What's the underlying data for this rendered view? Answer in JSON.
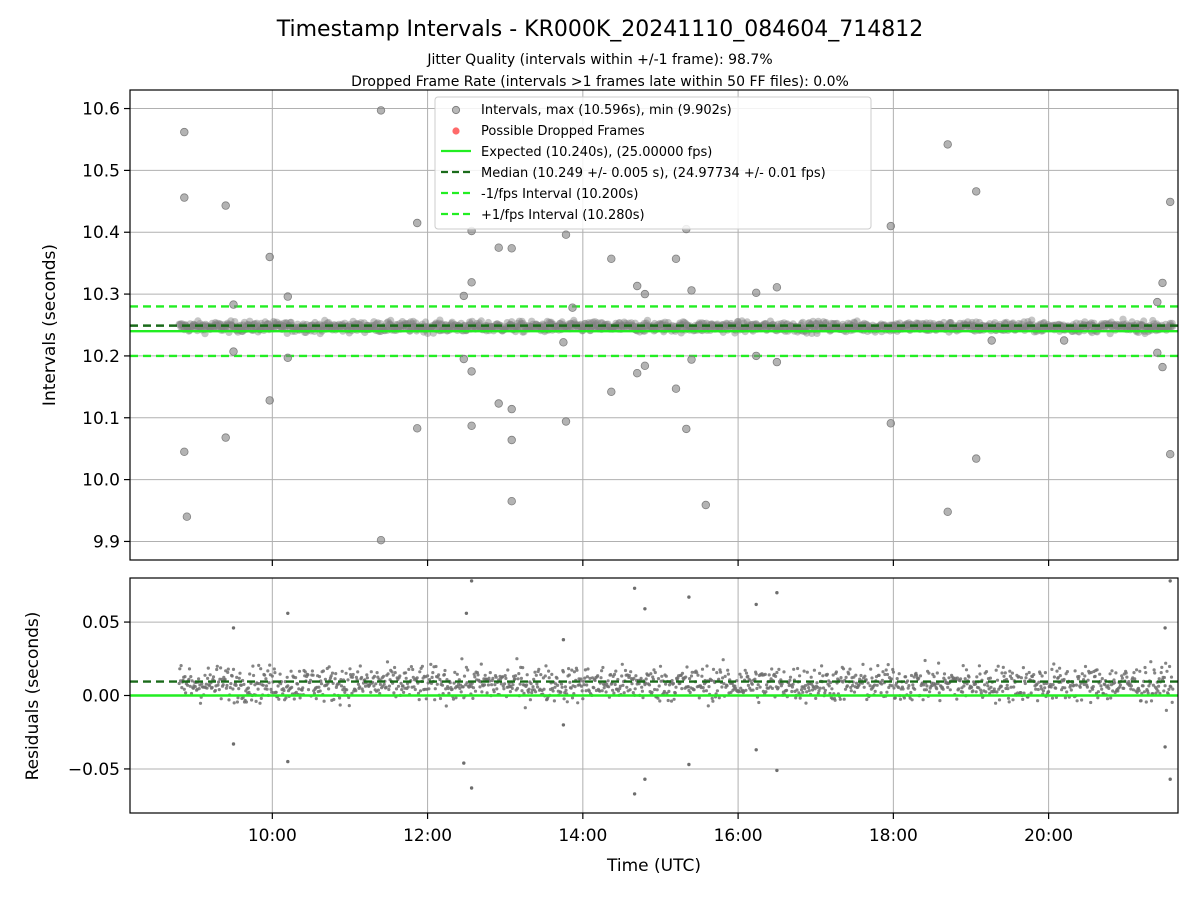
{
  "title": "Timestamp Intervals - KR000K_20241110_084604_714812",
  "subtitle_1": "Jitter Quality (intervals within +/-1 frame): 98.7%",
  "subtitle_2": "Dropped Frame Rate (intervals >1 frames late within 50 FF files): 0.0%",
  "colors": {
    "points": "#808080",
    "dropped": "#ff5a5a",
    "expected": "#22ee22",
    "median": "#1a6b1a",
    "fps_interval": "#22ee22",
    "grid": "#b0b0b0"
  },
  "chart_data": [
    {
      "type": "scatter",
      "name": "intervals",
      "ylabel": "Intervals (seconds)",
      "ylim": [
        9.87,
        10.63
      ],
      "y_ticks": [
        "9.9",
        "10.0",
        "10.1",
        "10.2",
        "10.3",
        "10.4",
        "10.5",
        "10.6"
      ],
      "grid": true,
      "legend_placement": "top-center",
      "legend": [
        "Intervals, max (10.596s), min (9.902s)",
        "Possible Dropped Frames",
        "Expected (10.240s), (25.00000 fps)",
        "Median (10.249 +/- 0.005 s), (24.97734 +/- 0.01 fps)",
        "-1/fps Interval (10.200s)",
        "+1/fps Interval (10.280s)"
      ],
      "reference_lines": {
        "expected": 10.24,
        "median": 10.249,
        "minus_one_fps": 10.2,
        "plus_one_fps": 10.28
      },
      "dense_band": {
        "x_start": "08:48",
        "x_end": "21:36",
        "center": 10.247,
        "spread": 0.007
      },
      "outliers": [
        [
          "08:52",
          10.562
        ],
        [
          "08:52",
          10.456
        ],
        [
          "08:52",
          10.045
        ],
        [
          "08:54",
          9.94
        ],
        [
          "09:24",
          10.443
        ],
        [
          "09:24",
          10.068
        ],
        [
          "09:30",
          10.283
        ],
        [
          "09:30",
          10.207
        ],
        [
          "09:58",
          10.36
        ],
        [
          "09:58",
          10.128
        ],
        [
          "10:12",
          10.296
        ],
        [
          "10:12",
          10.197
        ],
        [
          "11:24",
          10.597
        ],
        [
          "11:24",
          9.902
        ],
        [
          "11:52",
          10.415
        ],
        [
          "11:52",
          10.083
        ],
        [
          "12:28",
          10.297
        ],
        [
          "12:28",
          10.195
        ],
        [
          "12:34",
          10.319
        ],
        [
          "12:34",
          10.175
        ],
        [
          "12:34",
          10.402
        ],
        [
          "12:34",
          10.087
        ],
        [
          "12:55",
          10.375
        ],
        [
          "12:55",
          10.123
        ],
        [
          "13:05",
          10.374
        ],
        [
          "13:05",
          10.114
        ],
        [
          "13:05",
          10.064
        ],
        [
          "13:05",
          9.965
        ],
        [
          "13:47",
          10.396
        ],
        [
          "13:47",
          10.094
        ],
        [
          "13:45",
          10.222
        ],
        [
          "13:52",
          10.278
        ],
        [
          "14:22",
          10.357
        ],
        [
          "14:22",
          10.142
        ],
        [
          "14:42",
          10.313
        ],
        [
          "14:42",
          10.172
        ],
        [
          "14:48",
          10.3
        ],
        [
          "14:48",
          10.184
        ],
        [
          "15:12",
          10.357
        ],
        [
          "15:12",
          10.147
        ],
        [
          "15:20",
          10.405
        ],
        [
          "15:20",
          10.082
        ],
        [
          "15:24",
          10.306
        ],
        [
          "15:24",
          10.194
        ],
        [
          "15:35",
          9.959
        ],
        [
          "16:14",
          10.302
        ],
        [
          "16:14",
          10.2
        ],
        [
          "16:30",
          10.311
        ],
        [
          "16:30",
          10.19
        ],
        [
          "17:58",
          10.41
        ],
        [
          "17:58",
          10.091
        ],
        [
          "18:42",
          10.542
        ],
        [
          "18:42",
          9.948
        ],
        [
          "19:04",
          10.466
        ],
        [
          "19:04",
          10.034
        ],
        [
          "19:16",
          10.225
        ],
        [
          "20:12",
          10.225
        ],
        [
          "21:24",
          10.287
        ],
        [
          "21:24",
          10.205
        ],
        [
          "21:28",
          10.318
        ],
        [
          "21:28",
          10.182
        ],
        [
          "21:34",
          10.449
        ],
        [
          "21:34",
          10.041
        ]
      ]
    },
    {
      "type": "scatter",
      "name": "residuals",
      "xlabel": "Time (UTC)",
      "ylabel": "Residuals (seconds)",
      "ylim": [
        -0.08,
        0.08
      ],
      "y_ticks": [
        "−0.05",
        "0.00",
        "0.05"
      ],
      "y_tick_values": [
        -0.05,
        0.0,
        0.05
      ],
      "x_range": [
        "08:10",
        "21:40"
      ],
      "x_ticks": [
        "10:00",
        "12:00",
        "14:00",
        "16:00",
        "18:00",
        "20:00"
      ],
      "grid": true,
      "reference_lines": {
        "zero": 0.0,
        "median_offset": 0.0095
      },
      "dense_band": {
        "x_start": "08:48",
        "x_end": "21:36",
        "center": 0.008,
        "spread": 0.006
      },
      "outliers": [
        [
          "09:30",
          0.046
        ],
        [
          "09:30",
          -0.033
        ],
        [
          "10:12",
          0.056
        ],
        [
          "10:12",
          -0.045
        ],
        [
          "12:30",
          0.056
        ],
        [
          "12:28",
          -0.046
        ],
        [
          "12:34",
          0.078
        ],
        [
          "12:34",
          -0.063
        ],
        [
          "13:45",
          0.038
        ],
        [
          "13:45",
          -0.02
        ],
        [
          "14:40",
          0.073
        ],
        [
          "14:40",
          -0.067
        ],
        [
          "14:48",
          0.059
        ],
        [
          "14:48",
          -0.057
        ],
        [
          "15:22",
          0.067
        ],
        [
          "15:22",
          -0.047
        ],
        [
          "16:14",
          0.062
        ],
        [
          "16:14",
          -0.037
        ],
        [
          "16:30",
          0.07
        ],
        [
          "16:30",
          -0.051
        ],
        [
          "21:30",
          0.046
        ],
        [
          "21:30",
          -0.035
        ],
        [
          "21:34",
          0.078
        ],
        [
          "21:34",
          -0.057
        ]
      ]
    }
  ]
}
